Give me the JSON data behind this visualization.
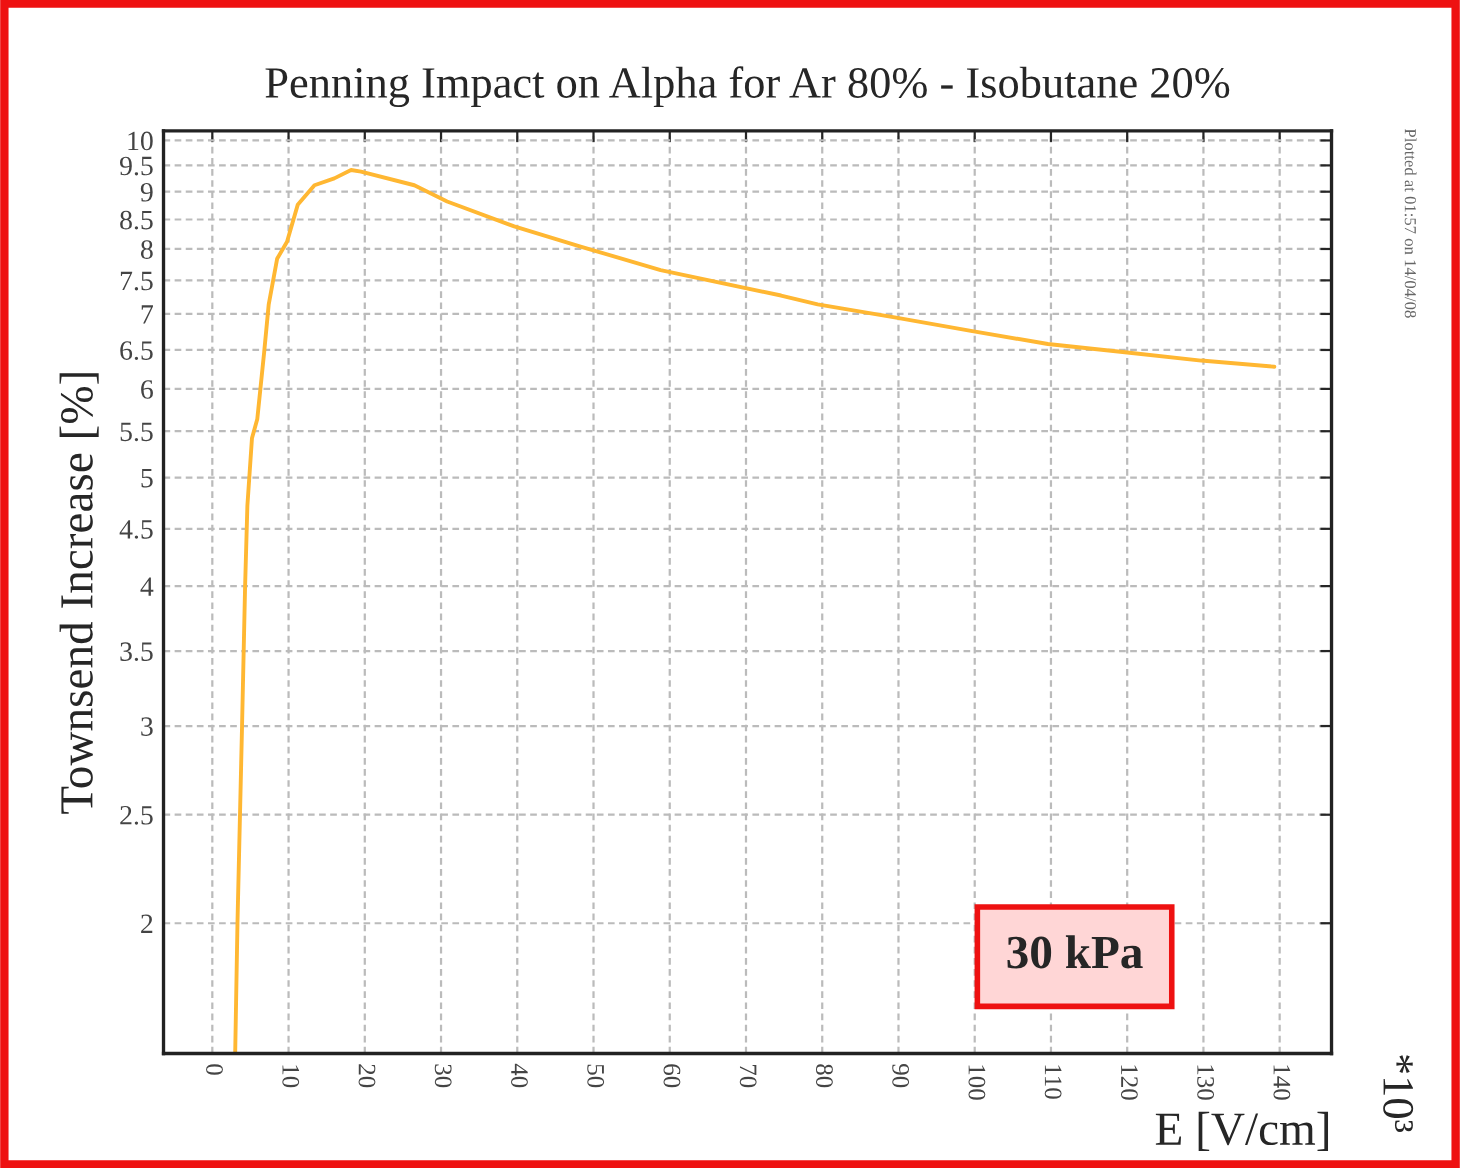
{
  "chart_data": {
    "type": "line",
    "title": "Penning Impact on Alpha for Ar 80% - Isobutane 20%",
    "xlabel": "E [V/cm]",
    "ylabel": "Townsend Increase [%]",
    "annotations": [
      "30 kPa",
      "*10³",
      "Plotted at 01:57 on 14/04/08"
    ],
    "log": "y",
    "grid": true,
    "line_style": "solid",
    "xlim": [
      -6.4,
      146.8
    ],
    "xticks": [
      0,
      10,
      20,
      30,
      40,
      50,
      60,
      70,
      80,
      90,
      100,
      110,
      120,
      130,
      140
    ],
    "ylim": [
      1.53,
      10.2
    ],
    "yticks": [
      2,
      2.5,
      3,
      3.5,
      4,
      4.5,
      5,
      5.5,
      6,
      6.5,
      7,
      7.5,
      8,
      8.5,
      9,
      9.5,
      10
    ],
    "series": [
      {
        "color": "#ffb732",
        "x": [
          3.0,
          3.3,
          3.9,
          4.3,
          4.6,
          5.2,
          5.9,
          6.8,
          7.4,
          8.5,
          9.8,
          11.2,
          13.4,
          16,
          18.2,
          19.5,
          26.5,
          30.8,
          39.6,
          48.3,
          58.8,
          74.6,
          79.4,
          89.5,
          99.5,
          109.6,
          119.7,
          129.7,
          139.3
        ],
        "values": [
          1.53,
          2.0,
          3.0,
          4.0,
          4.72,
          5.42,
          5.64,
          6.47,
          7.14,
          7.84,
          8.12,
          8.76,
          9.12,
          9.25,
          9.41,
          9.38,
          9.12,
          8.82,
          8.38,
          8.04,
          7.66,
          7.27,
          7.14,
          6.95,
          6.76,
          6.58,
          6.47,
          6.36,
          6.28
        ]
      }
    ]
  }
}
